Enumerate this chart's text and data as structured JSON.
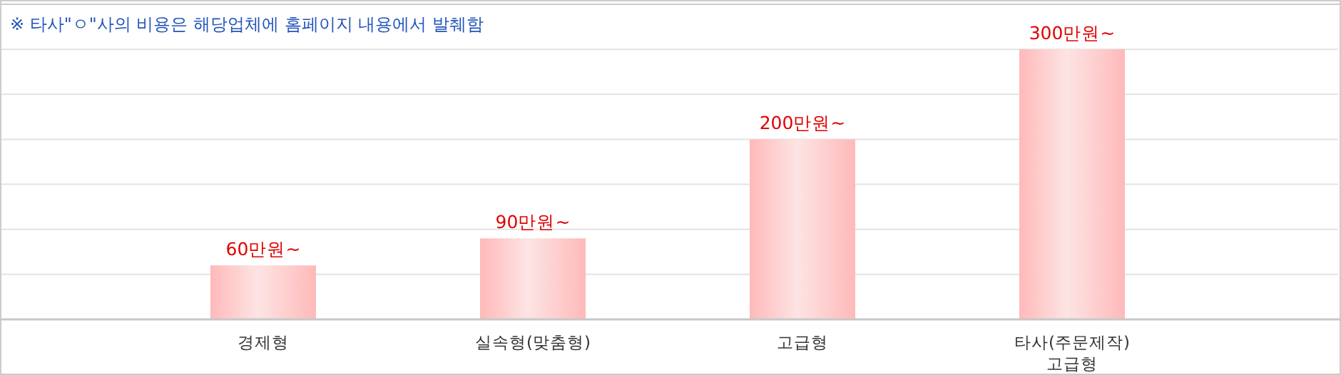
{
  "chart_data": {
    "type": "bar",
    "annotations": [
      "※ 타사\"ㅇ\"사의 비용은 해당업체에 홈페이지 내용에서 발췌함"
    ],
    "categories": [
      "경제형",
      "실속형(맞춤형)",
      "고급형",
      "타사(주문제작)\n고급형"
    ],
    "values": [
      60,
      90,
      200,
      300
    ],
    "value_labels": [
      "60만원~",
      "90만원~",
      "200만원~",
      "300만원~"
    ],
    "color": "#ffb9b9",
    "ylim": [
      0,
      350
    ],
    "yticks": [
      {
        "value": 0,
        "label": null
      },
      {
        "value": 50,
        "label": null
      },
      {
        "value": 100,
        "label": null
      },
      {
        "value": 150,
        "label": null
      },
      {
        "value": 200,
        "label": null
      },
      {
        "value": 250,
        "label": null
      },
      {
        "value": 300,
        "label": null
      }
    ],
    "grid": "y",
    "tick_labels": "x"
  }
}
